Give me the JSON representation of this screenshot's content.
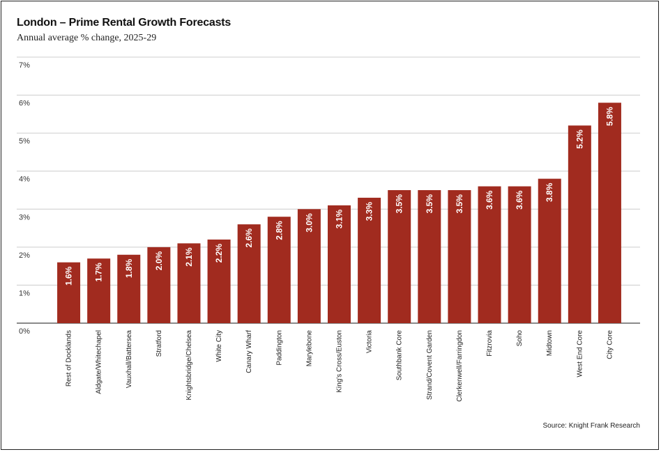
{
  "header": {
    "title": "London – Prime Rental Growth Forecasts",
    "subtitle": "Annual average % change, 2025-29"
  },
  "footer": {
    "source": "Source: Knight Frank Research"
  },
  "colors": {
    "bar": "#a12b1f",
    "grid": "#cccccc",
    "axis": "#444444"
  },
  "chart_data": {
    "type": "bar",
    "title": "London – Prime Rental Growth Forecasts",
    "subtitle": "Annual average % change, 2025-29",
    "xlabel": "",
    "ylabel": "",
    "ylim": [
      0,
      7
    ],
    "yticks": [
      0,
      1,
      2,
      3,
      4,
      5,
      6,
      7
    ],
    "ytick_labels": [
      "0%",
      "1%",
      "2%",
      "3%",
      "4%",
      "5%",
      "6%",
      "7%"
    ],
    "grid": true,
    "categories": [
      "Rest of Docklands",
      "Aldgate/Whitechapel",
      "Vauxhall/Battersea",
      "Stratford",
      "Knightsbridge/Chelsea",
      "White City",
      "Canary Wharf",
      "Paddington",
      "Marylebone",
      "King's Cross/Euston",
      "Victoria",
      "Southbank Core",
      "Strand/Covent Garden",
      "Clerkenwell/Farringdon",
      "Fitzrovia",
      "Soho",
      "Midtown",
      "West End Core",
      "City Core"
    ],
    "values": [
      1.6,
      1.7,
      1.8,
      2.0,
      2.1,
      2.2,
      2.6,
      2.8,
      3.0,
      3.1,
      3.3,
      3.5,
      3.5,
      3.5,
      3.6,
      3.6,
      3.8,
      5.2,
      5.8
    ],
    "data_labels": [
      "1.6%",
      "1.7%",
      "1.8%",
      "2.0%",
      "2.1%",
      "2.2%",
      "2.6%",
      "2.8%",
      "3.0%",
      "3.1%",
      "3.3%",
      "3.5%",
      "3.5%",
      "3.5%",
      "3.6%",
      "3.6%",
      "3.8%",
      "5.2%",
      "5.8%"
    ]
  }
}
